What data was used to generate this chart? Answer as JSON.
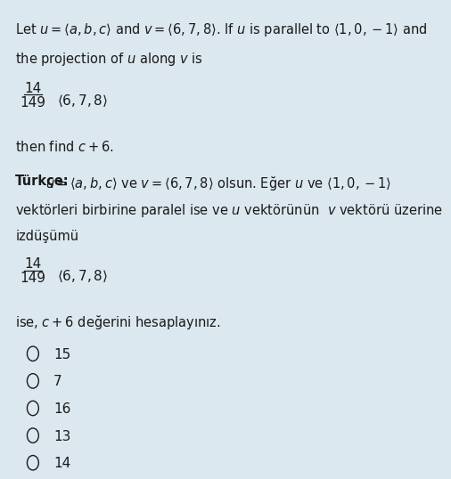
{
  "background_color": "#dce8f0",
  "text_color": "#1a1a1a",
  "fig_width": 4.78,
  "fig_height": 5.15,
  "line1": "Let $u = \\langle a, b, c\\rangle$ and $v = \\langle 6, 7, 8\\rangle$. If $u$ is parallel to $\\langle 1, 0, -1\\rangle$ and",
  "line2": "the projection of $u$ along $v$ is",
  "fraction_num": "14",
  "fraction_den": "149",
  "vector1": "$\\langle 6, 7, 8\\rangle$",
  "line3": "then find $c + 6$.",
  "turkish_label": "Türkçe:",
  "turkish_line1": "$u = \\langle a, b, c\\rangle$ ve $v = \\langle 6, 7, 8\\rangle$ olsun. Eğer $u$ ve $\\langle 1, 0, -1\\rangle$",
  "turkish_line2": "vektörleri birbirine paralel ise ve $u$ vektörünün  $v$ vektörü üzerine",
  "turkish_line3": "izdüşümü",
  "turkish_end": "ise, $c + 6$ değerini hesaplayınız.",
  "options": [
    "15",
    "7",
    "16",
    "13",
    "14"
  ],
  "font_size_main": 10.5,
  "font_size_options": 11
}
